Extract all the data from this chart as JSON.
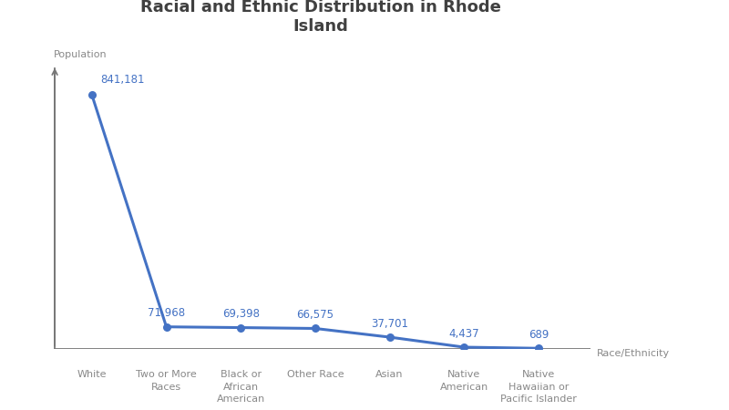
{
  "title": "Racial and Ethnic Distribution in Rhode\nIsland",
  "categories": [
    "White",
    "Two or More\nRaces",
    "Black or\nAfrican\nAmerican",
    "Other Race",
    "Asian",
    "Native\nAmerican",
    "Native\nHawaiian or\nPacific Islander"
  ],
  "values": [
    841181,
    71968,
    69398,
    66575,
    37701,
    4437,
    689
  ],
  "labels": [
    "841,181",
    "71,968",
    "69,398",
    "66,575",
    "37,701",
    "4,437",
    "689"
  ],
  "line_color": "#4472C4",
  "marker_color": "#4472C4",
  "xlabel": "Race/Ethnicity",
  "ylabel": "Population",
  "title_fontsize": 13,
  "label_fontsize": 8.5,
  "axis_label_fontsize": 8,
  "tick_fontsize": 8,
  "text_color": "#888888",
  "title_color": "#404040",
  "ylim": [
    0,
    980000
  ],
  "bg_color": "#ffffff"
}
